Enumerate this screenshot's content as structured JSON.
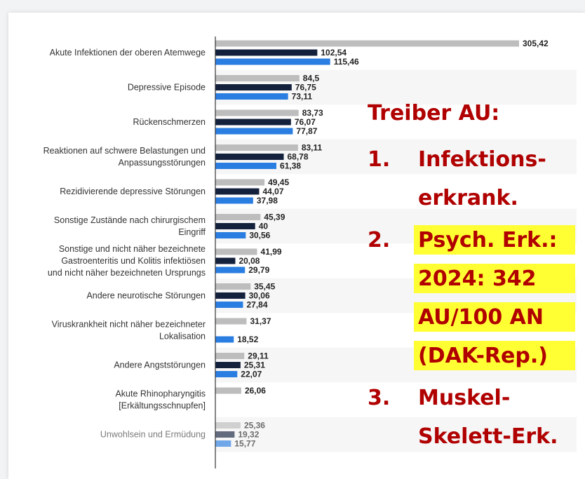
{
  "chart_data": {
    "type": "bar",
    "orientation": "horizontal",
    "categories": [
      "Akute Infektionen der oberen Atemwege",
      "Depressive Episode",
      "Rückenschmerzen",
      "Reaktionen auf schwere Belastungen und\nAnpassungsstörungen",
      "Rezidivierende depressive Störungen",
      "Sonstige Zustände nach chirurgischem\nEingriff",
      "Sonstige und nicht näher bezeichnete\nGastroenteritis und Kolitis infektiösen\nund nicht näher bezeichneten Ursprungs",
      "Andere neurotische Störungen",
      "Viruskrankheit nicht näher bezeichneter\nLokalisation",
      "Andere Angststörungen",
      "Akute Rhinopharyngitis\n[Erkältungsschnupfen]",
      "Unwohlsein und Ermüdung"
    ],
    "series": [
      {
        "color": "#bdbdbd",
        "values": [
          305.42,
          84.5,
          83.73,
          83.11,
          49.45,
          45.39,
          41.99,
          35.45,
          31.37,
          29.11,
          26.06,
          25.36
        ],
        "value_labels": [
          "305,42",
          "84,5",
          "83,73",
          "83,11",
          "49,45",
          "45,39",
          "41,99",
          "35,45",
          "31,37",
          "29,11",
          "26,06",
          "25,36"
        ]
      },
      {
        "color": "#14213d",
        "values": [
          102.54,
          76.75,
          76.07,
          68.78,
          44.07,
          40,
          20.08,
          30.06,
          null,
          25.31,
          null,
          19.32
        ],
        "value_labels": [
          "102,54",
          "76,75",
          "76,07",
          "68,78",
          "44,07",
          "40",
          "20,08",
          "30,06",
          null,
          "25,31",
          null,
          "19,32"
        ]
      },
      {
        "color": "#2a7de1",
        "values": [
          115.46,
          73.11,
          77.87,
          61.38,
          37.98,
          30.56,
          29.79,
          27.84,
          18.52,
          22.07,
          null,
          15.77
        ],
        "value_labels": [
          "115,46",
          "73,11",
          "77,87",
          "61,38",
          "37,98",
          "30,56",
          "29,79",
          "27,84",
          "18,52",
          "22,07",
          null,
          "15,77"
        ]
      }
    ]
  },
  "annotation": {
    "title": "Treiber AU:",
    "color": "#b00000",
    "highlight_color": "#ffff33",
    "items": [
      {
        "number": "1.",
        "lines": [
          "Infektions-",
          "erkrank."
        ],
        "highlight": false
      },
      {
        "number": "2.",
        "lines": [
          "Psych. Erk.:",
          "2024: 342",
          "AU/100 AN",
          "(DAK-Rep.)"
        ],
        "highlight": true
      },
      {
        "number": "3.",
        "lines": [
          "Muskel-",
          "Skelett-Erk."
        ],
        "highlight": false
      }
    ]
  }
}
